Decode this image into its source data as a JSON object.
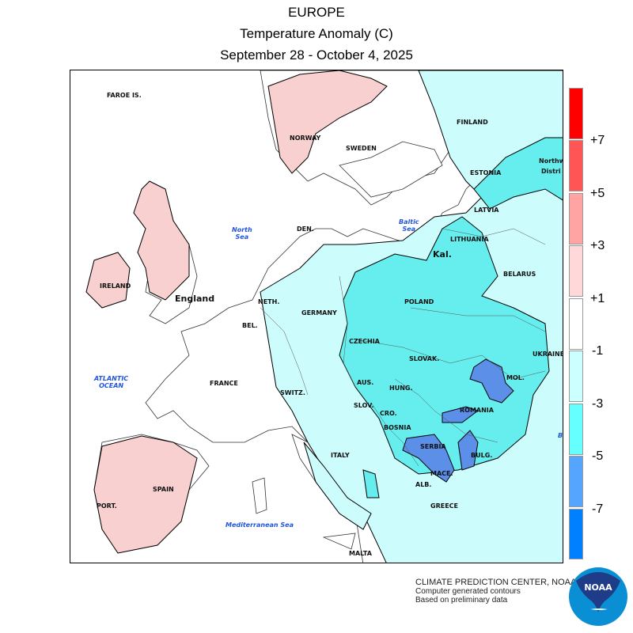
{
  "header": {
    "region": "EUROPE",
    "variable": "Temperature Anomaly (C)",
    "period": "September 28 - October 4, 2025"
  },
  "legend": {
    "bins": [
      {
        "color": "#ff0000"
      },
      {
        "color": "#ff5555"
      },
      {
        "color": "#ffa3a3"
      },
      {
        "color": "#ffd9d9"
      },
      {
        "color": "#ffffff"
      },
      {
        "color": "#ccffff"
      },
      {
        "color": "#66ffff"
      },
      {
        "color": "#55a5ff"
      },
      {
        "color": "#0080ff"
      }
    ],
    "labels": [
      "+7",
      "+5",
      "+3",
      "+1",
      "-1",
      "-3",
      "-5",
      "-7"
    ]
  },
  "map": {
    "countries": {
      "faroe": "FAROE IS.",
      "norway": "NORWAY",
      "sweden": "SWEDEN",
      "finland": "FINLAND",
      "estonia": "ESTONIA",
      "northwest_1": "Northw",
      "northwest_2": "Distri",
      "latvia": "LATVIA",
      "lithuania": "LITHUANIA",
      "kal": "Kal.",
      "belarus": "BELARUS",
      "den": "DEN.",
      "ireland": "IRELAND",
      "england": "England",
      "neth": "NETH.",
      "bel": "BEL.",
      "germany": "GERMANY",
      "poland": "POLAND",
      "czechia": "CZECHIA",
      "slovak": "SLOVAK.",
      "ukraine": "UKRAINE",
      "aus": "AUS.",
      "hung": "HUNG.",
      "mol": "MOL.",
      "romania": "ROMANIA",
      "france": "FRANCE",
      "switz": "SWITZ.",
      "slov": "SLOV.",
      "cro": "CRO.",
      "bosnia": "BOSNIA",
      "serbia": "SERBIA",
      "bulg": "BULG.",
      "mace": "MACE.",
      "alb": "ALB.",
      "greece": "GREECE",
      "italy": "ITALY",
      "spain": "SPAIN",
      "port": "PORT.",
      "malta": "MALTA"
    },
    "seas": {
      "north_1": "North",
      "north_2": "Sea",
      "baltic_1": "Baltic",
      "baltic_2": "Sea",
      "atlantic_1": "ATLANTIC",
      "atlantic_2": "OCEAN",
      "med": "Mediterranean Sea",
      "black": "B"
    },
    "fill_colors": {
      "warm1": "#f9d0d0",
      "cool1": "#ccfcfc",
      "cool2": "#66eeee",
      "cool3": "#5b8fe8"
    }
  },
  "footer": {
    "line1": "CLIMATE PREDICTION CENTER, NOAA",
    "line2": "Computer generated contours",
    "line3": "Based on preliminary data",
    "logo_text": "NOAA"
  }
}
